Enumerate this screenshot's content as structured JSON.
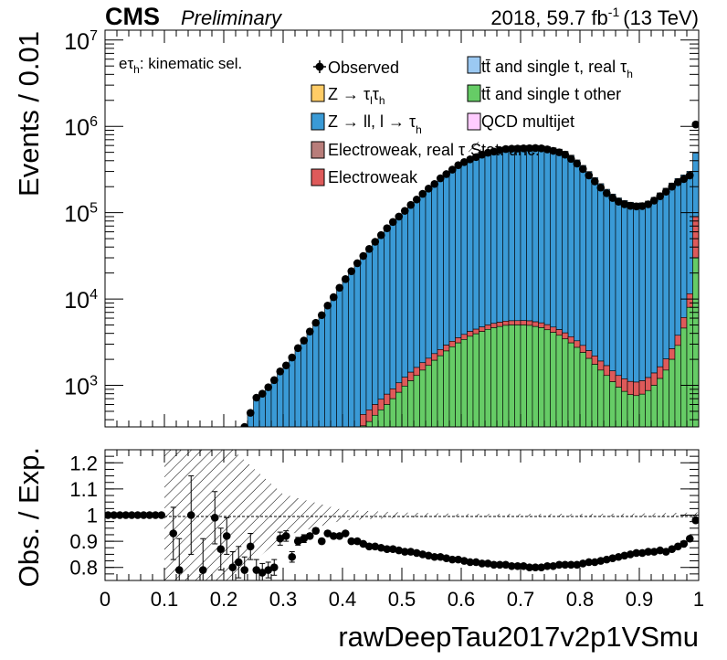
{
  "header": {
    "experiment": "CMS",
    "status": "Preliminary",
    "lumi_year": "2018, 59.7 fb",
    "lumi_exp": "-1",
    "lumi_energy": "(13 TeV)"
  },
  "selection_label": {
    "main": "eτ",
    "sub": "h",
    "rest": ": kinematic sel."
  },
  "legend": {
    "observed": "Observed",
    "ztautau": {
      "main": "Z → τ",
      "sub1": "l",
      "mid": "τ",
      "sub2": "h"
    },
    "zll": {
      "main": "Z → ll, l → τ",
      "sub": "h"
    },
    "ew_real": "Electroweak, real τ",
    "ew": "Electroweak",
    "tt_real": {
      "main": "tt̄ and single t, real  τ",
      "sub": "h"
    },
    "tt_other": "tt̄ and single t other",
    "qcd": "QCD multijet",
    "stat_unc": "Stat. unc."
  },
  "colors": {
    "ztautau": "#ffcc66",
    "zll": "#3a9ad6",
    "ew_real": "#b87d7a",
    "ew": "#de5a5a",
    "tt_real": "#9bc9f2",
    "tt_other": "#66cc66",
    "qcd": "#ffccff"
  },
  "chart_data": [
    {
      "type": "bar",
      "stacked": true,
      "ylabel": "Events / 0.01",
      "yscale": "log",
      "ylim": [
        330,
        13000000
      ],
      "xlim": [
        0,
        1
      ],
      "yticks": [
        "10^3",
        "10^4",
        "10^5",
        "10^6",
        "10^7"
      ],
      "bin_width": 0.01,
      "observed": {
        "x": [
          0.235,
          0.245,
          0.255,
          0.265,
          0.275,
          0.285,
          0.295,
          0.305,
          0.315,
          0.325,
          0.335,
          0.345,
          0.355,
          0.365,
          0.375,
          0.385,
          0.395,
          0.405,
          0.415,
          0.425,
          0.435,
          0.445,
          0.455,
          0.465,
          0.475,
          0.485,
          0.495,
          0.505,
          0.515,
          0.525,
          0.535,
          0.545,
          0.555,
          0.565,
          0.575,
          0.585,
          0.595,
          0.605,
          0.615,
          0.625,
          0.635,
          0.645,
          0.655,
          0.665,
          0.675,
          0.685,
          0.695,
          0.705,
          0.715,
          0.725,
          0.735,
          0.745,
          0.755,
          0.765,
          0.775,
          0.785,
          0.795,
          0.805,
          0.815,
          0.825,
          0.835,
          0.845,
          0.855,
          0.865,
          0.875,
          0.885,
          0.895,
          0.905,
          0.915,
          0.925,
          0.935,
          0.945,
          0.955,
          0.965,
          0.975,
          0.985,
          0.995
        ],
        "y": [
          330,
          480,
          720,
          800,
          950,
          1150,
          1450,
          1700,
          2100,
          2700,
          3300,
          4200,
          5300,
          6500,
          8400,
          10500,
          13500,
          17000,
          21000,
          26000,
          31500,
          38000,
          46000,
          55000,
          66000,
          78000,
          90000,
          105000,
          123000,
          142000,
          165000,
          190000,
          215000,
          250000,
          280000,
          315000,
          355000,
          385000,
          415000,
          440000,
          470000,
          495000,
          510000,
          530000,
          545000,
          550000,
          553000,
          555000,
          558000,
          560000,
          555000,
          540000,
          520000,
          500000,
          470000,
          420000,
          370000,
          320000,
          270000,
          230000,
          195000,
          168000,
          148000,
          134000,
          125000,
          120000,
          118000,
          119000,
          125000,
          138000,
          155000,
          175000,
          200000,
          225000,
          245000,
          270000,
          1050000
        ]
      },
      "background_components": {
        "x_edges_start": 0.0,
        "ztautau_fraction": 0.0,
        "ew_plateau_peak": 6000,
        "tt_other_peak": 5000,
        "zll_peak": 620000
      },
      "stack": {
        "x": [
          0.235,
          0.245,
          0.255,
          0.265,
          0.275,
          0.285,
          0.295,
          0.305,
          0.315,
          0.325,
          0.335,
          0.345,
          0.355,
          0.365,
          0.375,
          0.385,
          0.395,
          0.405,
          0.415,
          0.425,
          0.435,
          0.445,
          0.455,
          0.465,
          0.475,
          0.485,
          0.495,
          0.505,
          0.515,
          0.525,
          0.535,
          0.545,
          0.555,
          0.565,
          0.575,
          0.585,
          0.595,
          0.605,
          0.615,
          0.625,
          0.635,
          0.645,
          0.655,
          0.665,
          0.675,
          0.685,
          0.695,
          0.705,
          0.715,
          0.725,
          0.735,
          0.745,
          0.755,
          0.765,
          0.775,
          0.785,
          0.795,
          0.805,
          0.815,
          0.825,
          0.835,
          0.845,
          0.855,
          0.865,
          0.875,
          0.885,
          0.895,
          0.905,
          0.915,
          0.925,
          0.935,
          0.945,
          0.955,
          0.965,
          0.975,
          0.985,
          0.995
        ],
        "tt_other": [
          0,
          0,
          0,
          0,
          0,
          0,
          0,
          0,
          0,
          0,
          0,
          0,
          0,
          0,
          0,
          0,
          0,
          0,
          0,
          0,
          340,
          380,
          450,
          520,
          600,
          700,
          830,
          980,
          1130,
          1300,
          1500,
          1700,
          1950,
          2200,
          2500,
          2800,
          3100,
          3400,
          3700,
          3950,
          4200,
          4450,
          4650,
          4800,
          4950,
          5000,
          5000,
          5000,
          4950,
          4800,
          4650,
          4400,
          4100,
          3800,
          3450,
          3100,
          2750,
          2400,
          2050,
          1750,
          1500,
          1300,
          1100,
          950,
          850,
          780,
          760,
          790,
          870,
          1000,
          1200,
          1500,
          2000,
          2900,
          4600,
          8000,
          30000
        ],
        "ew": [
          0,
          0,
          0,
          0,
          0,
          0,
          0,
          0,
          0,
          0,
          0,
          0,
          0,
          0,
          0,
          0,
          0,
          0,
          0,
          0,
          120,
          140,
          150,
          170,
          190,
          210,
          240,
          260,
          290,
          310,
          330,
          360,
          380,
          400,
          420,
          440,
          460,
          490,
          510,
          520,
          540,
          560,
          570,
          580,
          590,
          600,
          610,
          620,
          630,
          640,
          640,
          640,
          630,
          620,
          600,
          560,
          530,
          500,
          470,
          440,
          410,
          390,
          370,
          350,
          340,
          330,
          330,
          340,
          360,
          390,
          440,
          520,
          650,
          900,
          1500,
          3500,
          60000
        ],
        "zll": [
          330,
          480,
          720,
          800,
          950,
          1150,
          1450,
          1700,
          2100,
          2700,
          3300,
          4200,
          5300,
          6500,
          8400,
          10500,
          13500,
          17000,
          21000,
          26000,
          31000,
          37500,
          45000,
          54000,
          65000,
          77000,
          89000,
          104000,
          122000,
          141000,
          164000,
          189000,
          214000,
          249000,
          280000,
          318000,
          360000,
          395000,
          430000,
          460000,
          490000,
          520000,
          540000,
          560000,
          575000,
          585000,
          590000,
          593000,
          595000,
          596000,
          592000,
          580000,
          560000,
          540000,
          510000,
          460000,
          405000,
          350000,
          297000,
          253000,
          215000,
          185000,
          163000,
          147000,
          137000,
          131000,
          128000,
          129000,
          135000,
          149000,
          168000,
          190000,
          218000,
          245000,
          268000,
          290000,
          400000
        ]
      }
    },
    {
      "type": "scatter",
      "ylabel": "Obs. / Exp.",
      "xlabel": "rawDeepTau2017v2p1VSmu",
      "xlim": [
        0,
        1
      ],
      "ylim": [
        0.75,
        1.25
      ],
      "xticks": [
        0,
        0.1,
        0.2,
        0.3,
        0.4,
        0.5,
        0.6,
        0.7,
        0.8,
        0.9,
        1
      ],
      "xtick_labels": [
        "0",
        "0.1",
        "0.2",
        "0.3",
        "0.4",
        "0.5",
        "0.6",
        "0.7",
        "0.8",
        "0.9",
        "1"
      ],
      "yticks": [
        0.8,
        0.9,
        1,
        1.1,
        1.2
      ],
      "ytick_labels": [
        "0.8",
        "0.9",
        "1",
        "1.1",
        "1.2"
      ],
      "x": [
        0.005,
        0.015,
        0.025,
        0.035,
        0.045,
        0.055,
        0.065,
        0.075,
        0.085,
        0.095,
        0.115,
        0.125,
        0.145,
        0.165,
        0.185,
        0.195,
        0.205,
        0.215,
        0.225,
        0.235,
        0.245,
        0.255,
        0.265,
        0.275,
        0.285,
        0.295,
        0.305,
        0.315,
        0.325,
        0.335,
        0.345,
        0.355,
        0.365,
        0.375,
        0.385,
        0.395,
        0.405,
        0.415,
        0.425,
        0.435,
        0.445,
        0.455,
        0.465,
        0.475,
        0.485,
        0.495,
        0.505,
        0.515,
        0.525,
        0.535,
        0.545,
        0.555,
        0.565,
        0.575,
        0.585,
        0.595,
        0.605,
        0.615,
        0.625,
        0.635,
        0.645,
        0.655,
        0.665,
        0.675,
        0.685,
        0.695,
        0.705,
        0.715,
        0.725,
        0.735,
        0.745,
        0.755,
        0.765,
        0.775,
        0.785,
        0.795,
        0.805,
        0.815,
        0.825,
        0.835,
        0.845,
        0.855,
        0.865,
        0.875,
        0.885,
        0.895,
        0.905,
        0.915,
        0.925,
        0.935,
        0.945,
        0.955,
        0.965,
        0.975,
        0.985,
        0.995
      ],
      "y": [
        1,
        1,
        1,
        1,
        1,
        1,
        1,
        1,
        1,
        1,
        0.93,
        0.79,
        1,
        0.79,
        0.99,
        0.87,
        0.92,
        0.8,
        0.82,
        0.79,
        0.88,
        0.79,
        0.78,
        0.79,
        0.8,
        0.91,
        0.92,
        0.84,
        0.9,
        0.91,
        0.92,
        0.94,
        0.9,
        0.93,
        0.92,
        0.92,
        0.93,
        0.9,
        0.9,
        0.89,
        0.88,
        0.88,
        0.875,
        0.87,
        0.87,
        0.865,
        0.86,
        0.86,
        0.855,
        0.85,
        0.845,
        0.84,
        0.84,
        0.835,
        0.83,
        0.83,
        0.825,
        0.82,
        0.82,
        0.815,
        0.815,
        0.81,
        0.81,
        0.81,
        0.805,
        0.805,
        0.805,
        0.8,
        0.8,
        0.8,
        0.805,
        0.805,
        0.81,
        0.81,
        0.81,
        0.81,
        0.815,
        0.82,
        0.82,
        0.825,
        0.83,
        0.835,
        0.84,
        0.845,
        0.85,
        0.855,
        0.855,
        0.86,
        0.86,
        0.865,
        0.86,
        0.87,
        0.88,
        0.89,
        0.91,
        0.98
      ],
      "yerr": [
        0,
        0,
        0,
        0,
        0,
        0,
        0,
        0,
        0,
        0,
        0.1,
        0.12,
        0.15,
        0.12,
        0.1,
        0.08,
        0.07,
        0.06,
        0.06,
        0.05,
        0.05,
        0.04,
        0.035,
        0.03,
        0.03,
        0.025,
        0.02,
        0.02,
        0.015,
        0.015,
        0.01,
        0.01,
        0.01,
        0.01,
        0.008,
        0.008,
        0.006,
        0.006,
        0.005,
        0.005,
        0.004,
        0.004,
        0.004,
        0.003,
        0.003,
        0.003,
        0.003,
        0.002,
        0.002,
        0.002,
        0.002,
        0.002,
        0.002,
        0.002,
        0.002,
        0.002,
        0.002,
        0.002,
        0.002,
        0.002,
        0.002,
        0.002,
        0.002,
        0.002,
        0.002,
        0.002,
        0.002,
        0.002,
        0.002,
        0.002,
        0.002,
        0.002,
        0.002,
        0.002,
        0.002,
        0.002,
        0.002,
        0.002,
        0.002,
        0.002,
        0.002,
        0.002,
        0.002,
        0.002,
        0.002,
        0.002,
        0.002,
        0.002,
        0.002,
        0.002,
        0.002,
        0.002,
        0.002,
        0.002,
        0.002,
        0.01
      ],
      "stat_unc_x": [
        0.1,
        0.2,
        0.3,
        0.4,
        0.5,
        0.6,
        0.7,
        0.8,
        0.9,
        1.0
      ],
      "stat_unc_half": [
        0.45,
        0.28,
        0.08,
        0.02,
        0.01,
        0.005,
        0.005,
        0.005,
        0.006,
        0.01
      ]
    }
  ]
}
